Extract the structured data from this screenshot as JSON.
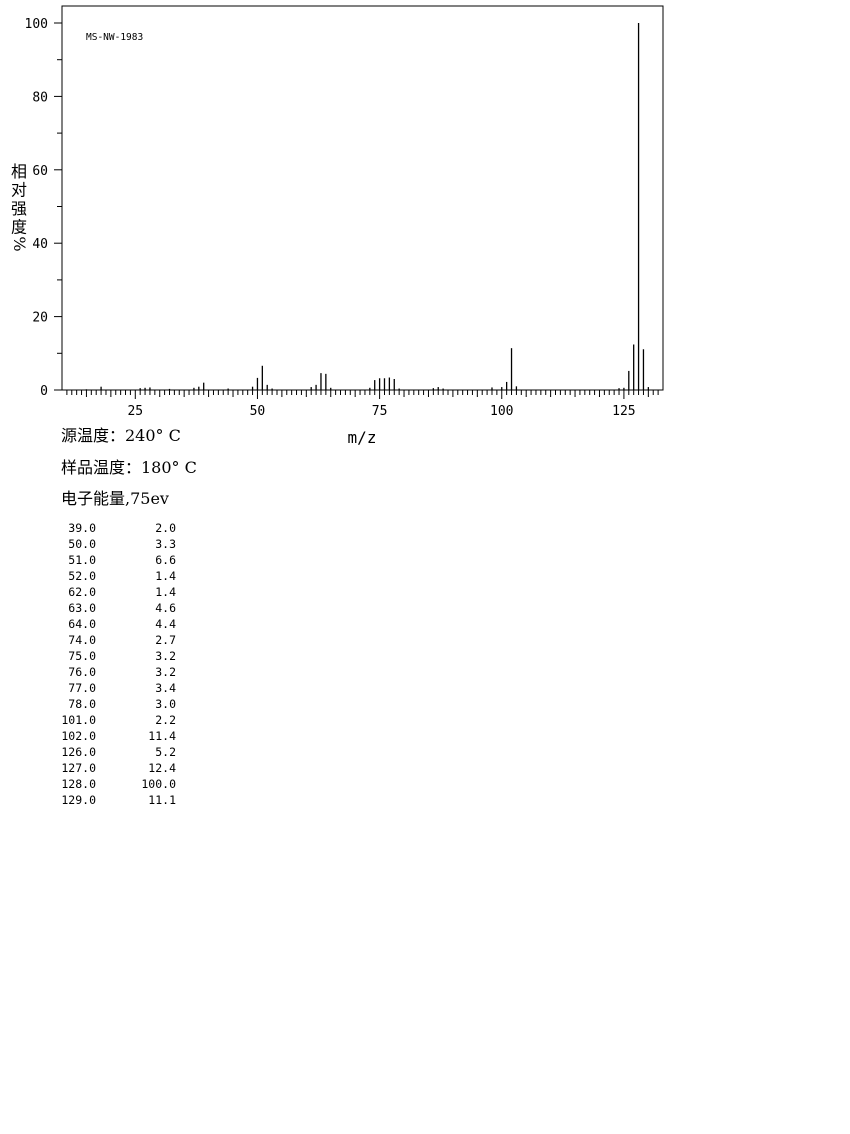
{
  "chart_data": {
    "type": "bar",
    "annotation": "MS-NW-1983",
    "xlabel": "m/z",
    "ylabel_chars": [
      "相",
      "对",
      "强",
      "度",
      "%"
    ],
    "xlim": [
      10,
      133
    ],
    "ylim": [
      0,
      100
    ],
    "xticks": [
      25,
      50,
      75,
      100,
      125
    ],
    "yticks": [
      0,
      20,
      40,
      60,
      80,
      100
    ],
    "grid": false,
    "peaks": [
      {
        "mz": 15,
        "i": 0.2
      },
      {
        "mz": 18,
        "i": 0.9
      },
      {
        "mz": 26,
        "i": 0.5
      },
      {
        "mz": 27,
        "i": 0.6
      },
      {
        "mz": 28,
        "i": 0.7
      },
      {
        "mz": 32,
        "i": 0.3
      },
      {
        "mz": 37,
        "i": 0.6
      },
      {
        "mz": 38,
        "i": 0.9
      },
      {
        "mz": 39,
        "i": 2.0
      },
      {
        "mz": 44,
        "i": 0.4
      },
      {
        "mz": 49,
        "i": 0.9
      },
      {
        "mz": 50,
        "i": 3.3
      },
      {
        "mz": 51,
        "i": 6.6
      },
      {
        "mz": 52,
        "i": 1.4
      },
      {
        "mz": 53,
        "i": 0.4
      },
      {
        "mz": 61,
        "i": 0.8
      },
      {
        "mz": 62,
        "i": 1.4
      },
      {
        "mz": 63,
        "i": 4.6
      },
      {
        "mz": 64,
        "i": 4.4
      },
      {
        "mz": 65,
        "i": 0.6
      },
      {
        "mz": 73,
        "i": 0.6
      },
      {
        "mz": 74,
        "i": 2.7
      },
      {
        "mz": 75,
        "i": 3.2
      },
      {
        "mz": 76,
        "i": 3.2
      },
      {
        "mz": 77,
        "i": 3.4
      },
      {
        "mz": 78,
        "i": 3.0
      },
      {
        "mz": 79,
        "i": 0.4
      },
      {
        "mz": 86,
        "i": 0.5
      },
      {
        "mz": 87,
        "i": 0.8
      },
      {
        "mz": 88,
        "i": 0.4
      },
      {
        "mz": 98,
        "i": 0.7
      },
      {
        "mz": 100,
        "i": 0.8
      },
      {
        "mz": 101,
        "i": 2.2
      },
      {
        "mz": 102,
        "i": 11.4
      },
      {
        "mz": 103,
        "i": 1.0
      },
      {
        "mz": 124,
        "i": 0.5
      },
      {
        "mz": 125,
        "i": 0.6
      },
      {
        "mz": 126,
        "i": 5.2
      },
      {
        "mz": 127,
        "i": 12.4
      },
      {
        "mz": 128,
        "i": 100.0
      },
      {
        "mz": 129,
        "i": 11.1
      },
      {
        "mz": 130,
        "i": 0.8
      }
    ]
  },
  "conditions": {
    "source_temp": "源温度：240° C",
    "sample_temp": "样品温度：180° C",
    "electron_energy": "电子能量,75ev"
  },
  "peak_table": [
    {
      "mz": "39.0",
      "intensity": "2.0"
    },
    {
      "mz": "50.0",
      "intensity": "3.3"
    },
    {
      "mz": "51.0",
      "intensity": "6.6"
    },
    {
      "mz": "52.0",
      "intensity": "1.4"
    },
    {
      "mz": "62.0",
      "intensity": "1.4"
    },
    {
      "mz": "63.0",
      "intensity": "4.6"
    },
    {
      "mz": "64.0",
      "intensity": "4.4"
    },
    {
      "mz": "74.0",
      "intensity": "2.7"
    },
    {
      "mz": "75.0",
      "intensity": "3.2"
    },
    {
      "mz": "76.0",
      "intensity": "3.2"
    },
    {
      "mz": "77.0",
      "intensity": "3.4"
    },
    {
      "mz": "78.0",
      "intensity": "3.0"
    },
    {
      "mz": "101.0",
      "intensity": "2.2"
    },
    {
      "mz": "102.0",
      "intensity": "11.4"
    },
    {
      "mz": "126.0",
      "intensity": "5.2"
    },
    {
      "mz": "127.0",
      "intensity": "12.4"
    },
    {
      "mz": "128.0",
      "intensity": "100.0"
    },
    {
      "mz": "129.0",
      "intensity": "11.1"
    }
  ]
}
